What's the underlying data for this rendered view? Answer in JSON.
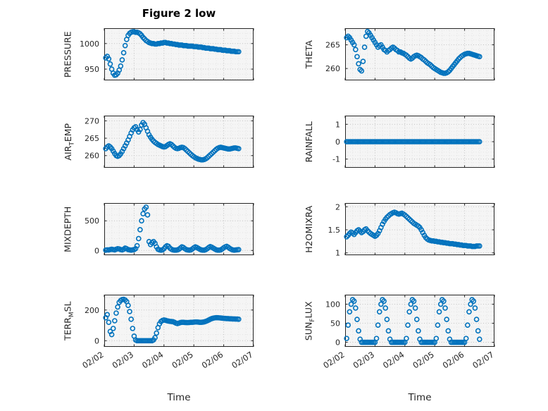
{
  "figure": {
    "title": "Figure 2 low",
    "xlabel": "Time",
    "marker_color": "#0072BD",
    "axis_color": "#262626",
    "text_color": "#262626",
    "plot_bg": "#f5f5f5",
    "major_grid_color": "#c2c2c2",
    "minor_grid_color": "#e4e4e4",
    "x_minor_step": 0.25,
    "x_axis": {
      "ticks": [
        2,
        3,
        4,
        5,
        6,
        7
      ],
      "labels": [
        "02/02",
        "02/03",
        "02/04",
        "02/05",
        "02/06",
        "02/07"
      ]
    }
  },
  "chart_data": [
    {
      "type": "scatter",
      "name": "PRESSURE",
      "ylabel": {
        "pre": "PRESSURE",
        "sub": "",
        "post": ""
      },
      "xlim": [
        2,
        7
      ],
      "ylim": [
        928,
        1030
      ],
      "yticks": [
        950,
        1000
      ],
      "show_x_tick_labels": false,
      "x_start": 2.05,
      "x_step": 0.05,
      "values": [
        972,
        975,
        970,
        960,
        950,
        942,
        938,
        939,
        942,
        948,
        956,
        968,
        982,
        996,
        1008,
        1016,
        1020,
        1022,
        1023,
        1023,
        1022,
        1022,
        1021,
        1019,
        1016,
        1012,
        1009,
        1006,
        1004,
        1002,
        1001,
        1000,
        1000,
        999,
        999,
        1000,
        1000,
        1001,
        1001,
        1002,
        1002,
        1001,
        1001,
        1000,
        1000,
        999,
        999,
        998,
        998,
        997,
        997,
        997,
        996,
        996,
        996,
        995,
        995,
        995,
        995,
        994,
        994,
        994,
        993,
        993,
        993,
        992,
        992,
        991,
        991,
        991,
        990,
        990,
        990,
        989,
        989,
        988,
        988,
        988,
        987,
        987,
        987,
        986,
        986,
        986,
        985,
        985,
        985,
        984,
        984,
        984
      ]
    },
    {
      "type": "scatter",
      "name": "THETA",
      "ylabel": {
        "pre": "THETA",
        "sub": "",
        "post": ""
      },
      "xlim": [
        2,
        7
      ],
      "ylim": [
        257.5,
        268.5
      ],
      "yticks": [
        260,
        265
      ],
      "show_x_tick_labels": false,
      "x_start": 2.05,
      "x_step": 0.05,
      "values": [
        266.5,
        266.8,
        266.5,
        266.0,
        265.5,
        265.0,
        264.0,
        262.5,
        261.0,
        259.8,
        259.5,
        261.5,
        264.5,
        266.8,
        267.8,
        267.5,
        267.0,
        266.5,
        266.0,
        265.5,
        265.0,
        264.5,
        264.8,
        265.0,
        264.5,
        264.0,
        263.8,
        263.5,
        263.8,
        264.0,
        264.3,
        264.5,
        264.3,
        264.0,
        263.8,
        263.5,
        263.5,
        263.3,
        263.2,
        263.0,
        262.8,
        262.5,
        262.2,
        262.0,
        262.2,
        262.5,
        262.7,
        262.8,
        262.7,
        262.5,
        262.3,
        262.0,
        261.8,
        261.5,
        261.2,
        261.0,
        260.8,
        260.5,
        260.2,
        260.0,
        259.8,
        259.6,
        259.4,
        259.2,
        259.1,
        259.0,
        259.0,
        259.1,
        259.3,
        259.6,
        260.0,
        260.4,
        260.8,
        261.2,
        261.6,
        262.0,
        262.3,
        262.6,
        262.8,
        263.0,
        263.1,
        263.2,
        263.2,
        263.1,
        263.0,
        262.9,
        262.8,
        262.7,
        262.6,
        262.5
      ]
    },
    {
      "type": "scatter",
      "name": "AIR_TEMP",
      "ylabel": {
        "pre": "AIR",
        "sub": "T",
        "post": "EMP"
      },
      "xlim": [
        2,
        7
      ],
      "ylim": [
        256.5,
        271.5
      ],
      "yticks": [
        260,
        265,
        270
      ],
      "show_x_tick_labels": false,
      "x_start": 2.05,
      "x_step": 0.05,
      "values": [
        262.0,
        262.5,
        262.8,
        262.5,
        262.0,
        261.3,
        260.6,
        260.0,
        259.8,
        260.0,
        260.5,
        261.2,
        262.0,
        262.8,
        263.6,
        264.5,
        265.5,
        266.5,
        267.4,
        268.0,
        268.3,
        267.5,
        266.8,
        267.5,
        268.8,
        269.5,
        269.0,
        268.0,
        267.0,
        266.0,
        265.3,
        264.7,
        264.2,
        263.8,
        263.5,
        263.2,
        263.0,
        262.8,
        262.6,
        262.5,
        262.6,
        262.9,
        263.2,
        263.4,
        263.2,
        262.8,
        262.4,
        262.1,
        262.0,
        262.1,
        262.3,
        262.4,
        262.3,
        262.0,
        261.6,
        261.2,
        260.8,
        260.4,
        260.0,
        259.7,
        259.4,
        259.2,
        259.0,
        258.9,
        258.8,
        258.8,
        258.9,
        259.1,
        259.4,
        259.8,
        260.2,
        260.6,
        261.0,
        261.4,
        261.8,
        262.1,
        262.3,
        262.4,
        262.3,
        262.2,
        262.1,
        262.0,
        261.9,
        261.9,
        262.0,
        262.1,
        262.2,
        262.2,
        262.1,
        262.0
      ]
    },
    {
      "type": "scatter",
      "name": "RAINFALL",
      "ylabel": {
        "pre": "RAINFALL",
        "sub": "",
        "post": ""
      },
      "xlim": [
        2,
        7
      ],
      "ylim": [
        -1.5,
        1.5
      ],
      "yticks": [
        -1,
        0,
        1
      ],
      "show_x_tick_labels": false,
      "x_start": 2.05,
      "x_step": 0.05,
      "values": [
        0,
        0,
        0,
        0,
        0,
        0,
        0,
        0,
        0,
        0,
        0,
        0,
        0,
        0,
        0,
        0,
        0,
        0,
        0,
        0,
        0,
        0,
        0,
        0,
        0,
        0,
        0,
        0,
        0,
        0,
        0,
        0,
        0,
        0,
        0,
        0,
        0,
        0,
        0,
        0,
        0,
        0,
        0,
        0,
        0,
        0,
        0,
        0,
        0,
        0,
        0,
        0,
        0,
        0,
        0,
        0,
        0,
        0,
        0,
        0,
        0,
        0,
        0,
        0,
        0,
        0,
        0,
        0,
        0,
        0,
        0,
        0,
        0,
        0,
        0,
        0,
        0,
        0,
        0,
        0,
        0,
        0,
        0,
        0,
        0,
        0,
        0,
        0,
        0,
        0
      ]
    },
    {
      "type": "scatter",
      "name": "MIXDEPTH",
      "ylabel": {
        "pre": "MIXDEPTH",
        "sub": "",
        "post": ""
      },
      "xlim": [
        2,
        7
      ],
      "ylim": [
        -80,
        800
      ],
      "yticks": [
        0,
        500
      ],
      "show_x_tick_labels": false,
      "x_start": 2.05,
      "x_step": 0.05,
      "values": [
        5,
        10,
        8,
        15,
        20,
        15,
        10,
        20,
        30,
        25,
        15,
        10,
        20,
        40,
        30,
        15,
        10,
        5,
        10,
        15,
        30,
        80,
        200,
        350,
        500,
        620,
        700,
        730,
        600,
        150,
        100,
        130,
        150,
        120,
        60,
        20,
        10,
        5,
        10,
        30,
        60,
        80,
        70,
        40,
        20,
        10,
        5,
        5,
        10,
        20,
        40,
        60,
        50,
        30,
        15,
        8,
        5,
        10,
        25,
        45,
        60,
        50,
        35,
        20,
        10,
        5,
        5,
        15,
        30,
        50,
        65,
        55,
        40,
        25,
        12,
        6,
        5,
        10,
        25,
        45,
        60,
        70,
        55,
        35,
        20,
        10,
        5,
        8,
        12,
        15
      ]
    },
    {
      "type": "scatter",
      "name": "H2OMIXRA",
      "ylabel": {
        "pre": "H2OMIXRA",
        "sub": "",
        "post": ""
      },
      "xlim": [
        2,
        7
      ],
      "ylim": [
        0.95,
        2.08
      ],
      "yticks": [
        1,
        1.5,
        2
      ],
      "show_x_tick_labels": false,
      "x_start": 2.05,
      "x_step": 0.05,
      "values": [
        1.35,
        1.38,
        1.42,
        1.45,
        1.43,
        1.4,
        1.44,
        1.48,
        1.5,
        1.47,
        1.44,
        1.46,
        1.5,
        1.52,
        1.48,
        1.45,
        1.42,
        1.4,
        1.38,
        1.36,
        1.38,
        1.42,
        1.48,
        1.55,
        1.62,
        1.68,
        1.73,
        1.77,
        1.8,
        1.83,
        1.85,
        1.87,
        1.88,
        1.87,
        1.85,
        1.84,
        1.85,
        1.86,
        1.84,
        1.82,
        1.79,
        1.76,
        1.73,
        1.7,
        1.67,
        1.64,
        1.62,
        1.6,
        1.58,
        1.55,
        1.5,
        1.44,
        1.38,
        1.33,
        1.3,
        1.28,
        1.27,
        1.26,
        1.26,
        1.25,
        1.25,
        1.24,
        1.24,
        1.23,
        1.23,
        1.22,
        1.22,
        1.21,
        1.21,
        1.2,
        1.2,
        1.2,
        1.19,
        1.19,
        1.18,
        1.18,
        1.17,
        1.17,
        1.16,
        1.16,
        1.16,
        1.15,
        1.15,
        1.15,
        1.14,
        1.14,
        1.14,
        1.15,
        1.15,
        1.15
      ]
    },
    {
      "type": "scatter",
      "name": "TERR_MSL",
      "ylabel": {
        "pre": "TERR",
        "sub": "M",
        "post": "SL"
      },
      "xlim": [
        2,
        7
      ],
      "ylim": [
        -40,
        300
      ],
      "yticks": [
        0,
        200
      ],
      "show_x_tick_labels": true,
      "x_start": 2.05,
      "x_step": 0.05,
      "values": [
        150,
        170,
        120,
        60,
        40,
        80,
        130,
        180,
        220,
        250,
        262,
        268,
        270,
        265,
        255,
        230,
        190,
        140,
        80,
        30,
        5,
        0,
        0,
        0,
        0,
        0,
        0,
        0,
        0,
        0,
        0,
        0,
        5,
        20,
        50,
        85,
        110,
        125,
        132,
        135,
        133,
        130,
        128,
        126,
        125,
        124,
        120,
        115,
        112,
        115,
        118,
        120,
        120,
        119,
        118,
        118,
        119,
        120,
        120,
        121,
        122,
        122,
        121,
        120,
        120,
        121,
        123,
        126,
        130,
        135,
        140,
        144,
        147,
        149,
        150,
        150,
        149,
        148,
        147,
        146,
        145,
        144,
        144,
        143,
        143,
        142,
        142,
        141,
        141,
        140
      ]
    },
    {
      "type": "scatter",
      "name": "SUN_FLUX",
      "ylabel": {
        "pre": "SUN",
        "sub": "F",
        "post": "LUX"
      },
      "xlim": [
        2,
        7
      ],
      "ylim": [
        -12,
        125
      ],
      "yticks": [
        0,
        50,
        100
      ],
      "show_x_tick_labels": true,
      "x_start": 2.05,
      "x_step": 0.05,
      "values": [
        10,
        45,
        80,
        100,
        112,
        108,
        90,
        60,
        30,
        8,
        0,
        0,
        0,
        0,
        0,
        0,
        0,
        0,
        0,
        0,
        10,
        45,
        80,
        100,
        112,
        108,
        90,
        60,
        30,
        8,
        0,
        0,
        0,
        0,
        0,
        0,
        0,
        0,
        0,
        0,
        10,
        45,
        80,
        100,
        112,
        108,
        90,
        60,
        30,
        8,
        0,
        0,
        0,
        0,
        0,
        0,
        0,
        0,
        0,
        0,
        10,
        45,
        80,
        100,
        112,
        108,
        90,
        60,
        30,
        8,
        0,
        0,
        0,
        0,
        0,
        0,
        0,
        0,
        0,
        0,
        10,
        45,
        80,
        100,
        112,
        108,
        90,
        60,
        30,
        8
      ]
    }
  ]
}
